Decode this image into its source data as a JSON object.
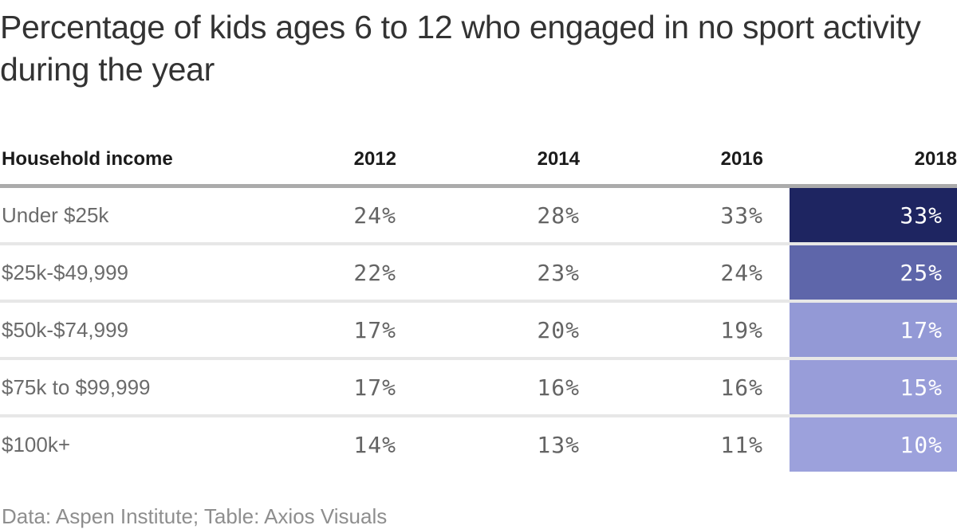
{
  "title": "Percentage of kids ages 6 to 12 who engaged in no sport activity during the year",
  "table": {
    "header": {
      "label": "Household income",
      "years": [
        "2012",
        "2014",
        "2016",
        "2018"
      ]
    },
    "rows": [
      {
        "label": "Under $25k",
        "values": [
          "24%",
          "28%",
          "33%"
        ],
        "highlight": {
          "value": "33%",
          "color": "#1e2561"
        }
      },
      {
        "label": "$25k-$49,999",
        "values": [
          "22%",
          "23%",
          "24%"
        ],
        "highlight": {
          "value": "25%",
          "color": "#5e66aa"
        }
      },
      {
        "label": "$50k-$74,999",
        "values": [
          "17%",
          "20%",
          "19%"
        ],
        "highlight": {
          "value": "17%",
          "color": "#9399d6"
        }
      },
      {
        "label": "$75k to $99,999",
        "values": [
          "17%",
          "16%",
          "16%"
        ],
        "highlight": {
          "value": "15%",
          "color": "#989dd9"
        }
      },
      {
        "label": "$100k+",
        "values": [
          "14%",
          "13%",
          "11%"
        ],
        "highlight": {
          "value": "10%",
          "color": "#9ca1dc"
        }
      }
    ]
  },
  "footer": "Data: Aspen Institute; Table: Axios Visuals",
  "colors": {
    "header_border": "#ababab",
    "row_border": "#e7e7e7",
    "highlight_text": "#ffffff"
  },
  "chart_data": {
    "type": "table",
    "title": "Percentage of kids ages 6 to 12 who engaged in no sport activity during the year",
    "row_dimension": "Household income",
    "columns": [
      "2012",
      "2014",
      "2016",
      "2018"
    ],
    "categories": [
      "Under $25k",
      "$25k-$49,999",
      "$50k-$74,999",
      "$75k to $99,999",
      "$100k+"
    ],
    "series": [
      {
        "name": "Under $25k",
        "values": [
          24,
          28,
          33,
          33
        ]
      },
      {
        "name": "$25k-$49,999",
        "values": [
          22,
          23,
          24,
          25
        ]
      },
      {
        "name": "$50k-$74,999",
        "values": [
          17,
          20,
          19,
          17
        ]
      },
      {
        "name": "$75k to $99,999",
        "values": [
          17,
          16,
          16,
          15
        ]
      },
      {
        "name": "$100k+",
        "values": [
          14,
          13,
          11,
          10
        ]
      }
    ],
    "unit": "%",
    "highlighted_column": "2018",
    "highlight_palette": [
      "#1e2561",
      "#5e66aa",
      "#9399d6",
      "#989dd9",
      "#9ca1dc"
    ],
    "source_note": "Data: Aspen Institute; Table: Axios Visuals"
  }
}
